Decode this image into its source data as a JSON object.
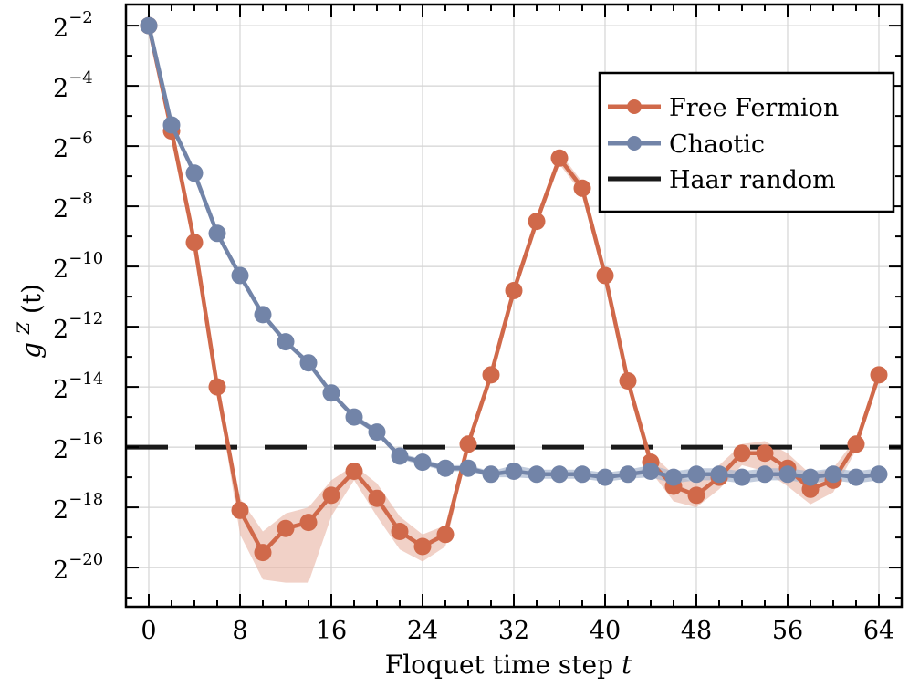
{
  "chart_data": {
    "type": "line",
    "xlabel": "Floquet time step",
    "xlabel_var": "t",
    "ylabel_base": "g",
    "ylabel_sup": "Z",
    "ylabel_arg": "(t)",
    "xlim": [
      -2,
      66
    ],
    "xticks": [
      0,
      8,
      16,
      24,
      32,
      40,
      48,
      56,
      64
    ],
    "ylim_log2": [
      -21.3,
      -1.3
    ],
    "yticks_log2": [
      -2,
      -4,
      -6,
      -8,
      -10,
      -12,
      -14,
      -16,
      -18,
      -20
    ],
    "ytick_base": "2",
    "grid": true,
    "legend_position": "top-right",
    "series": [
      {
        "name": "Free Fermion",
        "color": "#d0694a",
        "band_color": "#e8b2a2",
        "x": [
          0,
          2,
          4,
          6,
          8,
          10,
          12,
          14,
          16,
          18,
          20,
          22,
          24,
          26,
          28,
          30,
          32,
          34,
          36,
          38,
          40,
          42,
          44,
          46,
          48,
          50,
          52,
          54,
          56,
          58,
          60,
          62,
          64
        ],
        "log2_values": [
          -2.0,
          -5.5,
          -9.2,
          -14.0,
          -18.1,
          -19.5,
          -18.7,
          -18.5,
          -17.6,
          -16.8,
          -17.7,
          -18.8,
          -19.3,
          -18.9,
          -15.9,
          -13.6,
          -10.8,
          -8.5,
          -6.4,
          -7.4,
          -10.3,
          -13.8,
          -16.5,
          -17.3,
          -17.6,
          -17.0,
          -16.2,
          -16.2,
          -16.7,
          -17.4,
          -17.1,
          -15.9,
          -13.6
        ],
        "band_lower": [
          -2.0,
          -5.6,
          -9.3,
          -14.1,
          -18.9,
          -20.4,
          -20.5,
          -20.5,
          -18.3,
          -17.1,
          -18.3,
          -19.4,
          -19.8,
          -19.3,
          -16.1,
          -13.8,
          -11.0,
          -8.7,
          -6.6,
          -7.6,
          -10.5,
          -14.0,
          -16.8,
          -17.8,
          -18.0,
          -17.4,
          -16.6,
          -16.8,
          -17.3,
          -17.9,
          -17.5,
          -16.1,
          -13.8
        ],
        "band_upper": [
          -2.0,
          -5.4,
          -9.1,
          -13.9,
          -17.7,
          -18.8,
          -18.2,
          -18.0,
          -17.1,
          -16.6,
          -17.2,
          -18.3,
          -18.9,
          -18.6,
          -15.7,
          -13.4,
          -10.6,
          -8.3,
          -6.2,
          -7.2,
          -10.1,
          -13.6,
          -16.2,
          -16.9,
          -17.2,
          -16.6,
          -15.9,
          -15.8,
          -16.2,
          -16.9,
          -16.7,
          -15.7,
          -13.4
        ]
      },
      {
        "name": "Chaotic",
        "color": "#7284a8",
        "band_color": "#a8b6cf",
        "x": [
          0,
          2,
          4,
          6,
          8,
          10,
          12,
          14,
          16,
          18,
          20,
          22,
          24,
          26,
          28,
          30,
          32,
          34,
          36,
          38,
          40,
          42,
          44,
          46,
          48,
          50,
          52,
          54,
          56,
          58,
          60,
          62,
          64
        ],
        "log2_values": [
          -2.0,
          -5.3,
          -6.9,
          -8.9,
          -10.3,
          -11.6,
          -12.5,
          -13.2,
          -14.2,
          -15.0,
          -15.5,
          -16.3,
          -16.5,
          -16.7,
          -16.7,
          -16.9,
          -16.8,
          -16.9,
          -16.9,
          -16.9,
          -17.0,
          -16.9,
          -16.8,
          -17.0,
          -16.9,
          -16.9,
          -17.0,
          -16.9,
          -16.9,
          -17.0,
          -16.9,
          -17.0,
          -16.9
        ],
        "band_lower": [
          -2.0,
          -5.35,
          -6.95,
          -8.95,
          -10.35,
          -11.65,
          -12.55,
          -13.25,
          -14.25,
          -15.1,
          -15.6,
          -16.4,
          -16.6,
          -16.8,
          -16.8,
          -17.0,
          -17.0,
          -17.05,
          -17.05,
          -17.05,
          -17.15,
          -17.05,
          -17.0,
          -17.2,
          -17.1,
          -17.1,
          -17.2,
          -17.1,
          -17.1,
          -17.2,
          -17.1,
          -17.2,
          -17.1
        ],
        "band_upper": [
          -2.0,
          -5.25,
          -6.85,
          -8.85,
          -10.25,
          -11.55,
          -12.45,
          -13.15,
          -14.15,
          -14.9,
          -15.4,
          -16.2,
          -16.4,
          -16.6,
          -16.6,
          -16.8,
          -16.6,
          -16.75,
          -16.75,
          -16.75,
          -16.85,
          -16.75,
          -16.6,
          -16.8,
          -16.7,
          -16.7,
          -16.8,
          -16.7,
          -16.7,
          -16.8,
          -16.7,
          -16.8,
          -16.7
        ]
      }
    ],
    "reference_line": {
      "name": "Haar random",
      "log2_value": -16.0,
      "color": "#1a1a1a",
      "style": "dashed"
    }
  }
}
